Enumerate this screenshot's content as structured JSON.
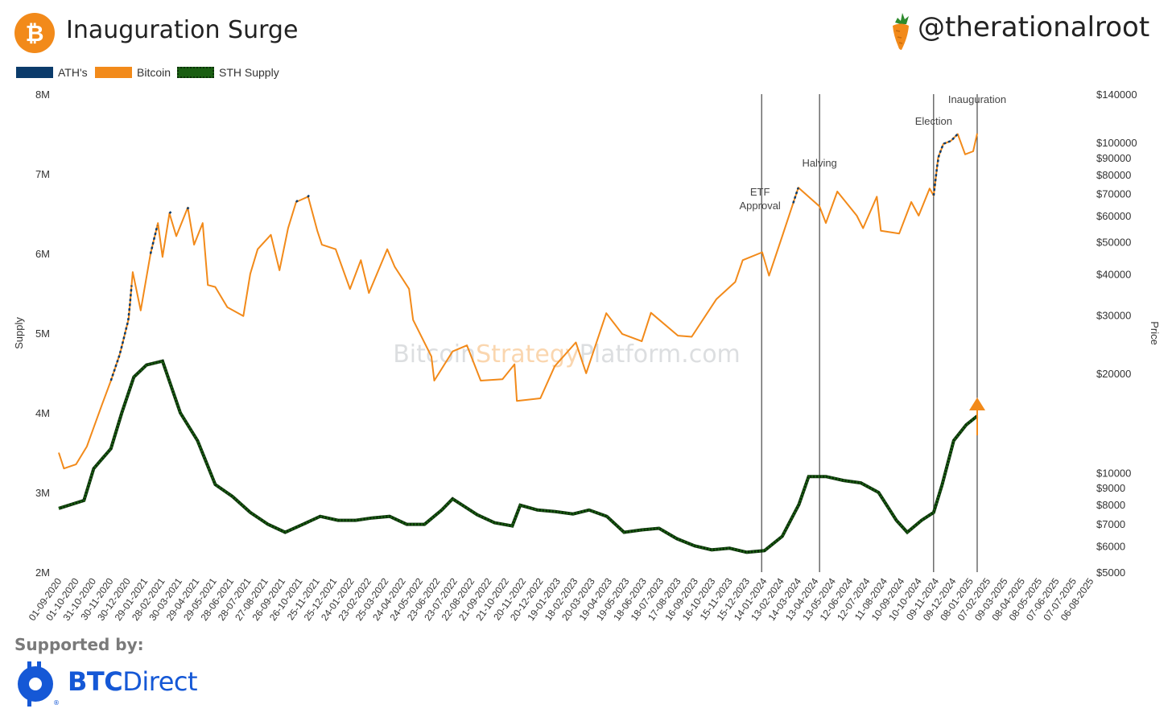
{
  "header": {
    "title": "Inauguration Surge",
    "handle": "@therationalroot",
    "btc_logo_symbol": "₿"
  },
  "legend": [
    {
      "label": "ATH's",
      "color": "#0b3b6b",
      "style": "solid"
    },
    {
      "label": "Bitcoin",
      "color": "#f28a1a",
      "style": "solid"
    },
    {
      "label": "STH Supply",
      "color": "#1a5e12",
      "style": "dotted"
    }
  ],
  "chart_data": {
    "type": "line",
    "watermark": {
      "part1": "Bitcoin",
      "part2": "Strategy",
      "part3": "Platform.com"
    },
    "ylabel_left": "Supply",
    "ylabel_right": "Price",
    "y_left": {
      "range": [
        2000000,
        8000000
      ],
      "ticks": [
        "2M",
        "3M",
        "4M",
        "5M",
        "6M",
        "7M",
        "8M"
      ],
      "tick_values": [
        2000000,
        3000000,
        4000000,
        5000000,
        6000000,
        7000000,
        8000000
      ]
    },
    "y_right": {
      "scale": "log",
      "range": [
        5000,
        140000
      ],
      "ticks": [
        "$5000",
        "$6000",
        "$7000",
        "$8000",
        "$9000",
        "$10000",
        "$20000",
        "$30000",
        "$40000",
        "$50000",
        "$60000",
        "$70000",
        "$80000",
        "$90000",
        "$100000",
        "$140000"
      ],
      "tick_values": [
        5000,
        6000,
        7000,
        8000,
        9000,
        10000,
        20000,
        30000,
        40000,
        50000,
        60000,
        70000,
        80000,
        90000,
        100000,
        140000
      ]
    },
    "x_ticks": [
      "01-09-2020",
      "01-10-2020",
      "31-10-2020",
      "30-11-2020",
      "30-12-2020",
      "29-01-2021",
      "28-02-2021",
      "30-03-2021",
      "29-04-2021",
      "29-05-2021",
      "28-06-2021",
      "28-07-2021",
      "27-08-2021",
      "26-09-2021",
      "26-10-2021",
      "25-11-2021",
      "25-12-2021",
      "24-01-2022",
      "23-02-2022",
      "25-03-2022",
      "24-04-2022",
      "24-05-2022",
      "23-06-2022",
      "23-07-2022",
      "22-08-2022",
      "21-09-2022",
      "21-10-2022",
      "20-11-2022",
      "20-12-2022",
      "19-01-2023",
      "18-02-2023",
      "20-03-2023",
      "19-04-2023",
      "19-05-2023",
      "18-06-2023",
      "18-07-2023",
      "17-08-2023",
      "16-09-2023",
      "16-10-2023",
      "15-11-2023",
      "15-12-2023",
      "14-01-2024",
      "13-02-2024",
      "14-03-2024",
      "13-04-2024",
      "13-05-2024",
      "12-06-2024",
      "12-07-2024",
      "11-08-2024",
      "10-09-2024",
      "10-10-2024",
      "09-11-2024",
      "09-12-2024",
      "08-01-2025",
      "07-02-2025",
      "09-03-2025",
      "08-04-2025",
      "08-05-2025",
      "07-06-2025",
      "07-07-2025",
      "06-08-2025"
    ],
    "events": [
      {
        "label": "ETF",
        "label2": "Approval",
        "date": "2024-01-10"
      },
      {
        "label": "Halving",
        "date": "2024-04-20"
      },
      {
        "label": "Election",
        "date": "2024-11-05"
      },
      {
        "label": "Inauguration",
        "date": "2025-01-20"
      }
    ],
    "series": [
      {
        "name": "Bitcoin",
        "axis": "right",
        "color": "#f28a1a",
        "points": [
          [
            "2020-09-01",
            11500
          ],
          [
            "2020-09-10",
            10300
          ],
          [
            "2020-10-01",
            10600
          ],
          [
            "2020-10-20",
            12000
          ],
          [
            "2020-11-01",
            13700
          ],
          [
            "2020-11-15",
            16000
          ],
          [
            "2020-12-01",
            19000
          ],
          [
            "2020-12-17",
            23000
          ],
          [
            "2021-01-01",
            29300
          ],
          [
            "2021-01-08",
            40500
          ],
          [
            "2021-01-22",
            31000
          ],
          [
            "2021-02-08",
            46000
          ],
          [
            "2021-02-21",
            57000
          ],
          [
            "2021-03-01",
            45000
          ],
          [
            "2021-03-13",
            61000
          ],
          [
            "2021-03-25",
            52000
          ],
          [
            "2021-04-14",
            63500
          ],
          [
            "2021-04-25",
            49000
          ],
          [
            "2021-05-10",
            57000
          ],
          [
            "2021-05-19",
            37000
          ],
          [
            "2021-06-01",
            36500
          ],
          [
            "2021-06-22",
            31700
          ],
          [
            "2021-07-20",
            29800
          ],
          [
            "2021-08-01",
            40000
          ],
          [
            "2021-08-14",
            47500
          ],
          [
            "2021-09-06",
            52500
          ],
          [
            "2021-09-21",
            41000
          ],
          [
            "2021-10-06",
            55000
          ],
          [
            "2021-10-20",
            66000
          ],
          [
            "2021-11-10",
            68500
          ],
          [
            "2021-11-26",
            54000
          ],
          [
            "2021-12-04",
            49000
          ],
          [
            "2021-12-28",
            47500
          ],
          [
            "2022-01-22",
            36000
          ],
          [
            "2022-02-10",
            44000
          ],
          [
            "2022-02-24",
            35000
          ],
          [
            "2022-03-28",
            47500
          ],
          [
            "2022-04-10",
            42000
          ],
          [
            "2022-05-05",
            36000
          ],
          [
            "2022-05-12",
            29000
          ],
          [
            "2022-06-13",
            22500
          ],
          [
            "2022-06-18",
            19000
          ],
          [
            "2022-07-20",
            23300
          ],
          [
            "2022-08-14",
            24300
          ],
          [
            "2022-09-07",
            19000
          ],
          [
            "2022-10-15",
            19200
          ],
          [
            "2022-11-05",
            21300
          ],
          [
            "2022-11-09",
            16500
          ],
          [
            "2022-12-20",
            16800
          ],
          [
            "2023-01-14",
            21000
          ],
          [
            "2023-02-20",
            24800
          ],
          [
            "2023-03-10",
            20000
          ],
          [
            "2023-04-14",
            30400
          ],
          [
            "2023-05-12",
            26300
          ],
          [
            "2023-06-15",
            25000
          ],
          [
            "2023-07-01",
            30500
          ],
          [
            "2023-08-17",
            26000
          ],
          [
            "2023-09-10",
            25800
          ],
          [
            "2023-10-23",
            33500
          ],
          [
            "2023-11-25",
            37800
          ],
          [
            "2023-12-08",
            44000
          ],
          [
            "2024-01-11",
            46500
          ],
          [
            "2024-01-23",
            39500
          ],
          [
            "2024-02-15",
            52000
          ],
          [
            "2024-03-14",
            73000
          ],
          [
            "2024-04-20",
            64000
          ],
          [
            "2024-05-01",
            57000
          ],
          [
            "2024-05-21",
            71000
          ],
          [
            "2024-06-24",
            60000
          ],
          [
            "2024-07-05",
            55000
          ],
          [
            "2024-07-29",
            68500
          ],
          [
            "2024-08-05",
            54000
          ],
          [
            "2024-09-06",
            53000
          ],
          [
            "2024-09-27",
            66000
          ],
          [
            "2024-10-10",
            60000
          ],
          [
            "2024-10-29",
            72500
          ],
          [
            "2024-11-05",
            69000
          ],
          [
            "2024-11-13",
            90000
          ],
          [
            "2024-11-22",
            99000
          ],
          [
            "2024-12-05",
            101000
          ],
          [
            "2024-12-17",
            106000
          ],
          [
            "2024-12-30",
            92000
          ],
          [
            "2025-01-13",
            94000
          ],
          [
            "2025-01-20",
            106500
          ]
        ]
      },
      {
        "name": "STH Supply",
        "axis": "left",
        "color": "#1a5e12",
        "points": [
          [
            "2020-09-01",
            2800000
          ],
          [
            "2020-10-15",
            2900000
          ],
          [
            "2020-11-01",
            3300000
          ],
          [
            "2020-12-01",
            3550000
          ],
          [
            "2020-12-20",
            4000000
          ],
          [
            "2021-01-10",
            4450000
          ],
          [
            "2021-02-01",
            4600000
          ],
          [
            "2021-03-01",
            4650000
          ],
          [
            "2021-04-01",
            4000000
          ],
          [
            "2021-05-01",
            3650000
          ],
          [
            "2021-06-01",
            3100000
          ],
          [
            "2021-07-01",
            2950000
          ],
          [
            "2021-08-01",
            2750000
          ],
          [
            "2021-09-01",
            2600000
          ],
          [
            "2021-10-01",
            2500000
          ],
          [
            "2021-11-01",
            2600000
          ],
          [
            "2021-12-01",
            2700000
          ],
          [
            "2022-01-01",
            2650000
          ],
          [
            "2022-02-01",
            2650000
          ],
          [
            "2022-03-01",
            2680000
          ],
          [
            "2022-04-01",
            2700000
          ],
          [
            "2022-05-01",
            2600000
          ],
          [
            "2022-06-01",
            2600000
          ],
          [
            "2022-07-01",
            2780000
          ],
          [
            "2022-07-20",
            2920000
          ],
          [
            "2022-09-01",
            2720000
          ],
          [
            "2022-10-01",
            2620000
          ],
          [
            "2022-11-01",
            2580000
          ],
          [
            "2022-11-15",
            2840000
          ],
          [
            "2022-12-15",
            2780000
          ],
          [
            "2023-01-15",
            2760000
          ],
          [
            "2023-02-15",
            2730000
          ],
          [
            "2023-03-15",
            2780000
          ],
          [
            "2023-04-15",
            2700000
          ],
          [
            "2023-05-15",
            2500000
          ],
          [
            "2023-06-15",
            2530000
          ],
          [
            "2023-07-15",
            2550000
          ],
          [
            "2023-08-15",
            2420000
          ],
          [
            "2023-09-15",
            2330000
          ],
          [
            "2023-10-15",
            2280000
          ],
          [
            "2023-11-15",
            2300000
          ],
          [
            "2023-12-15",
            2250000
          ],
          [
            "2024-01-15",
            2270000
          ],
          [
            "2024-02-15",
            2450000
          ],
          [
            "2024-03-15",
            2850000
          ],
          [
            "2024-04-01",
            3200000
          ],
          [
            "2024-05-01",
            3200000
          ],
          [
            "2024-06-01",
            3150000
          ],
          [
            "2024-07-01",
            3120000
          ],
          [
            "2024-08-01",
            3000000
          ],
          [
            "2024-09-01",
            2650000
          ],
          [
            "2024-09-20",
            2500000
          ],
          [
            "2024-10-15",
            2650000
          ],
          [
            "2024-11-05",
            2750000
          ],
          [
            "2024-11-20",
            3100000
          ],
          [
            "2024-12-10",
            3650000
          ],
          [
            "2025-01-01",
            3850000
          ],
          [
            "2025-01-20",
            3960000
          ]
        ]
      }
    ],
    "ath_segments": [
      [
        "2020-12-01",
        "2021-01-08"
      ],
      [
        "2021-02-08",
        "2021-02-21"
      ],
      [
        "2021-03-13",
        "2021-03-14"
      ],
      [
        "2021-04-13",
        "2021-04-14"
      ],
      [
        "2021-10-20",
        "2021-10-21"
      ],
      [
        "2021-11-09",
        "2021-11-10"
      ],
      [
        "2024-03-05",
        "2024-03-14"
      ],
      [
        "2024-11-05",
        "2024-12-17"
      ]
    ]
  },
  "annotation_arrow": {
    "color": "#f28a1a"
  },
  "sponsor": {
    "label": "Supported by:",
    "brand_bold": "BTC",
    "brand_rest": "Direct"
  }
}
